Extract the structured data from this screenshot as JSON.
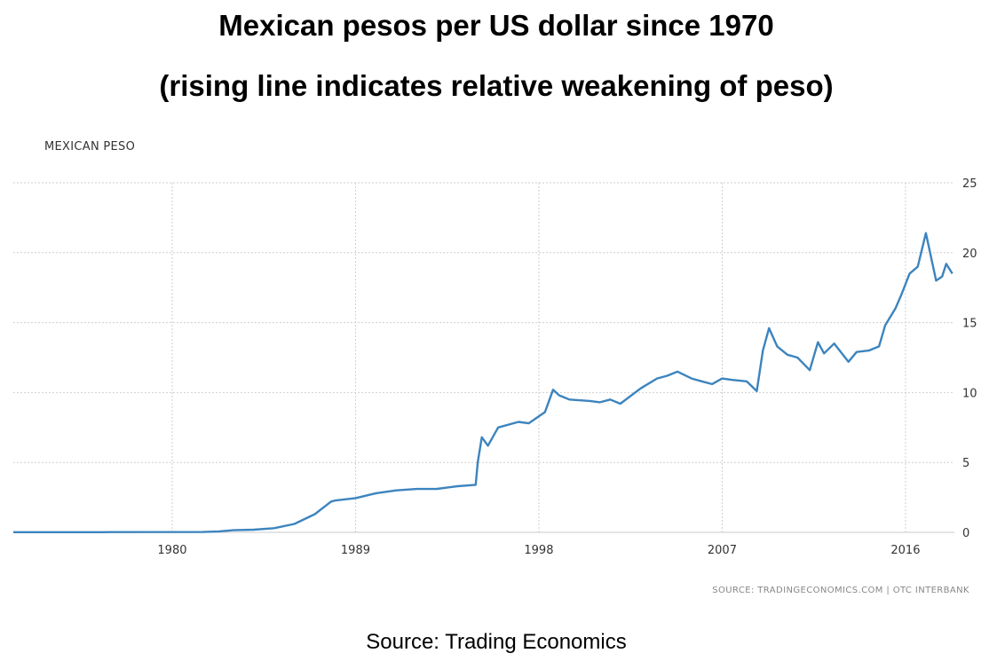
{
  "header": {
    "title_line1": "Mexican pesos per US dollar since 1970",
    "title_line2": "(rising line indicates relative weakening of peso)"
  },
  "footer": {
    "source": "Source: Trading Economics"
  },
  "chart_data": {
    "type": "line",
    "title": "MEXICAN PESO",
    "xlabel": "",
    "ylabel": "",
    "x_tick_labels": [
      "1980",
      "1989",
      "1998",
      "2007",
      "2016"
    ],
    "y_tick_labels": [
      "0",
      "5",
      "10",
      "15",
      "20",
      "25"
    ],
    "xlim": [
      1972.2,
      2018.4
    ],
    "ylim": [
      0,
      25
    ],
    "grid": true,
    "y_axis_side": "right",
    "colors": {
      "line": "#3c84be",
      "grid": "#cfcfcf",
      "axis": "#c8c8c8"
    },
    "credit": "SOURCE: TRADINGECONOMICS.COM | OTC INTERBANK",
    "series": [
      {
        "values": [
          [
            1972.2,
            0.0125
          ],
          [
            1976.5,
            0.0125
          ],
          [
            1977.0,
            0.022
          ],
          [
            1981.5,
            0.026
          ],
          [
            1982.3,
            0.07
          ],
          [
            1983.0,
            0.15
          ],
          [
            1984.0,
            0.19
          ],
          [
            1985.0,
            0.3
          ],
          [
            1986.0,
            0.6
          ],
          [
            1987.0,
            1.3
          ],
          [
            1987.8,
            2.2
          ],
          [
            1988.0,
            2.28
          ],
          [
            1989.0,
            2.45
          ],
          [
            1990.0,
            2.8
          ],
          [
            1991.0,
            3.0
          ],
          [
            1992.0,
            3.1
          ],
          [
            1993.0,
            3.11
          ],
          [
            1994.0,
            3.3
          ],
          [
            1994.9,
            3.4
          ],
          [
            1995.0,
            5.0
          ],
          [
            1995.2,
            6.8
          ],
          [
            1995.5,
            6.2
          ],
          [
            1996.0,
            7.5
          ],
          [
            1997.0,
            7.9
          ],
          [
            1997.5,
            7.8
          ],
          [
            1998.3,
            8.6
          ],
          [
            1998.7,
            10.2
          ],
          [
            1999.0,
            9.8
          ],
          [
            1999.5,
            9.5
          ],
          [
            2000.5,
            9.4
          ],
          [
            2001.0,
            9.3
          ],
          [
            2001.5,
            9.5
          ],
          [
            2002.0,
            9.2
          ],
          [
            2003.0,
            10.3
          ],
          [
            2003.8,
            11.0
          ],
          [
            2004.3,
            11.2
          ],
          [
            2004.8,
            11.5
          ],
          [
            2005.5,
            11.0
          ],
          [
            2006.0,
            10.8
          ],
          [
            2006.5,
            10.6
          ],
          [
            2007.0,
            11.0
          ],
          [
            2007.5,
            10.9
          ],
          [
            2008.2,
            10.8
          ],
          [
            2008.7,
            10.1
          ],
          [
            2009.0,
            13.0
          ],
          [
            2009.3,
            14.6
          ],
          [
            2009.7,
            13.3
          ],
          [
            2010.2,
            12.7
          ],
          [
            2010.7,
            12.5
          ],
          [
            2011.3,
            11.6
          ],
          [
            2011.7,
            13.6
          ],
          [
            2012.0,
            12.8
          ],
          [
            2012.5,
            13.5
          ],
          [
            2013.2,
            12.2
          ],
          [
            2013.6,
            12.9
          ],
          [
            2014.2,
            13.0
          ],
          [
            2014.7,
            13.3
          ],
          [
            2015.0,
            14.8
          ],
          [
            2015.5,
            16.0
          ],
          [
            2015.8,
            17.0
          ],
          [
            2016.2,
            18.5
          ],
          [
            2016.6,
            19.0
          ],
          [
            2017.0,
            21.4
          ],
          [
            2017.5,
            18.0
          ],
          [
            2017.8,
            18.3
          ],
          [
            2018.0,
            19.2
          ],
          [
            2018.3,
            18.5
          ]
        ]
      }
    ]
  }
}
